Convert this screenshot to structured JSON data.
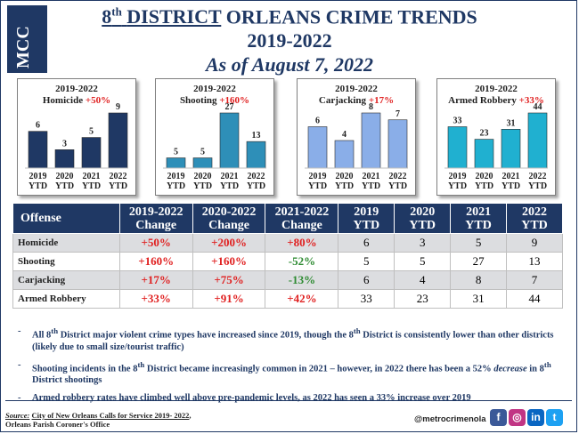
{
  "logo_text": "MCC",
  "title": {
    "district_num": "8",
    "district_sup": "th",
    "district_word": "DISTRICT",
    "rest": "ORLEANS CRIME TRENDS",
    "years": "2019-2022",
    "asof": "As of August 7, 2022"
  },
  "colors": {
    "navy": "#1f3864",
    "red": "#e02020",
    "green": "#2e8b32",
    "homicide": "#1f3864",
    "shooting": "#2e8fb8",
    "carjacking": "#8aaee8",
    "armed_robbery": "#20b0d0"
  },
  "chart_data": [
    {
      "type": "bar",
      "title": "2019-2022 Homicide +50%",
      "title_label": "2019-2022",
      "offense": "Homicide",
      "change": "+50%",
      "categories": [
        "2019 YTD",
        "2020 YTD",
        "2021 YTD",
        "2022 YTD"
      ],
      "values": [
        6,
        3,
        5,
        9
      ]
    },
    {
      "type": "bar",
      "title": "2019-2022 Shooting +160%",
      "title_label": "2019-2022",
      "offense": "Shooting",
      "change": "+160%",
      "categories": [
        "2019 YTD",
        "2020 YTD",
        "2021 YTD",
        "2022 YTD"
      ],
      "values": [
        5,
        5,
        27,
        13
      ]
    },
    {
      "type": "bar",
      "title": "2019-2022 Carjacking +17%",
      "title_label": "2019-2022",
      "offense": "Carjacking",
      "change": "+17%",
      "categories": [
        "2019 YTD",
        "2020 YTD",
        "2021 YTD",
        "2022 YTD"
      ],
      "values": [
        6,
        4,
        8,
        7
      ]
    },
    {
      "type": "bar",
      "title": "2019-2022 Armed Robbery +33%",
      "title_label": "2019-2022",
      "offense": "Armed Robbery",
      "change": "+33%",
      "categories": [
        "2019 YTD",
        "2020 YTD",
        "2021 YTD",
        "2022 YTD"
      ],
      "values": [
        33,
        23,
        31,
        44
      ]
    }
  ],
  "table": {
    "headers": [
      "Offense",
      "2019-2022 Change",
      "2020-2022 Change",
      "2021-2022 Change",
      "2019 YTD",
      "2020 YTD",
      "2021 YTD",
      "2022 YTD"
    ],
    "rows": [
      {
        "offense": "Homicide",
        "c1": "+50%",
        "c2": "+200%",
        "c3": "+80%",
        "y2019": "6",
        "y2020": "3",
        "y2021": "5",
        "y2022": "9"
      },
      {
        "offense": "Shooting",
        "c1": "+160%",
        "c2": "+160%",
        "c3": "-52%",
        "y2019": "5",
        "y2020": "5",
        "y2021": "27",
        "y2022": "13"
      },
      {
        "offense": "Carjacking",
        "c1": "+17%",
        "c2": "+75%",
        "c3": "-13%",
        "y2019": "6",
        "y2020": "4",
        "y2021": "8",
        "y2022": "7"
      },
      {
        "offense": "Armed Robbery",
        "c1": "+33%",
        "c2": "+91%",
        "c3": "+42%",
        "y2019": "33",
        "y2020": "23",
        "y2021": "31",
        "y2022": "44"
      }
    ]
  },
  "bullets": {
    "dash": "-",
    "b1_a": "All 8",
    "b1_sup1": "th",
    "b1_b": " District major violent crime types have increased since 2019, though the 8",
    "b1_sup2": "th",
    "b1_c": " District is consistently lower than other districts (likely due to small size/tourist traffic)",
    "b2_a": "Shooting incidents in the 8",
    "b2_sup1": "th",
    "b2_b": " District became increasingly common in 2021 – however, in 2022 there has been a 52% ",
    "b2_em": "decrease",
    "b2_c": " in 8",
    "b2_sup2": "th",
    "b2_d": " District shootings",
    "b3": "Armed robbery rates have climbed well above pre-pandemic levels, as 2022 has seen a 33% increase over 2019"
  },
  "footer": {
    "source_label": "Source:",
    "source_link": "City of New Orleans Calls for Service 2019- 2022",
    "source_tail": ",",
    "source_line2": "Orleans Parish Coroner's Office",
    "handle": "@metrocrimenola",
    "social": [
      {
        "name": "facebook",
        "glyph": "f",
        "color": "#3b5998"
      },
      {
        "name": "instagram",
        "glyph": "◎",
        "color": "#c13584"
      },
      {
        "name": "linkedin",
        "glyph": "in",
        "color": "#0a66c2"
      },
      {
        "name": "twitter",
        "glyph": "t",
        "color": "#1da1f2"
      }
    ]
  }
}
